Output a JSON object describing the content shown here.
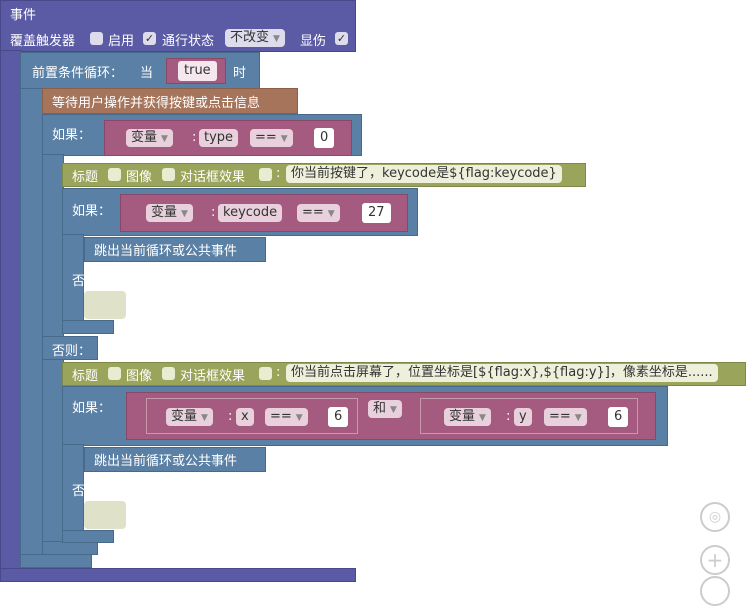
{
  "event": {
    "title": "事件",
    "override_label": "覆盖触发器",
    "override": false,
    "enable_label": "启用",
    "enable": true,
    "pass_label": "通行状态",
    "pass_value": "不改变",
    "show_damage_label": "显伤",
    "show_damage": true
  },
  "loop": {
    "label": "前置条件循环：",
    "when": "当",
    "cond": "true",
    "suffix": "时"
  },
  "wait": {
    "label": "等待用户操作并获得按键或点击信息"
  },
  "if1": {
    "label": "如果：",
    "var": "变量",
    "name": "type",
    "op": "==",
    "value": "0",
    "else": "否则："
  },
  "title1": {
    "label": "标题",
    "image": "图像",
    "dialog": "对话框效果",
    "text": "你当前按键了，keycode是${flag:keycode}"
  },
  "if2": {
    "label": "如果：",
    "var": "变量",
    "name": "keycode",
    "op": "==",
    "value": "27",
    "break": "跳出当前循环或公共事件",
    "else": "否则："
  },
  "title2": {
    "label": "标题",
    "image": "图像",
    "dialog": "对话框效果",
    "text": "你当前点击屏幕了，位置坐标是[${flag:x},${flag:y}]，像素坐标是......"
  },
  "if3": {
    "label": "如果：",
    "var1": "变量",
    "name1": "x",
    "op1": "==",
    "value1": "6",
    "and": "和",
    "var2": "变量",
    "name2": "y",
    "op2": "==",
    "value2": "6",
    "break": "跳出当前循环或公共事件",
    "else": "否则："
  }
}
